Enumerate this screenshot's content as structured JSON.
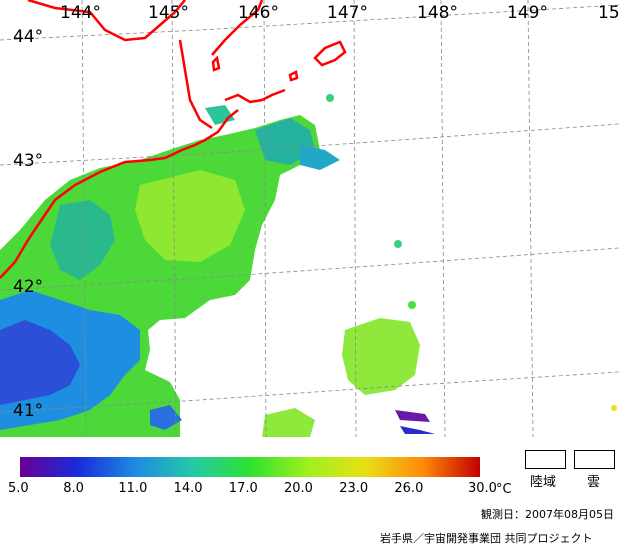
{
  "map": {
    "lon_labels": [
      "144°",
      "145°",
      "146°",
      "147°",
      "148°",
      "149°",
      "15"
    ],
    "lat_labels": [
      "44°",
      "43°",
      "42°",
      "41°"
    ],
    "coast_color": "#ff0000",
    "grid_color": "#888888"
  },
  "legend": {
    "ticks": [
      "5.0",
      "8.0",
      "11.0",
      "14.0",
      "17.0",
      "20.0",
      "23.0",
      "26.0",
      "30.0"
    ],
    "unit": "°C",
    "range": [
      5.0,
      30.0
    ],
    "colors": [
      "#6a0094",
      "#1a2adb",
      "#1d8be0",
      "#23c9a8",
      "#2fe12f",
      "#9ef01e",
      "#e8e016",
      "#ff8a0a",
      "#c20000"
    ],
    "land_label": "陸域",
    "cloud_label": "雲"
  },
  "observation": "観測日：2007年08月05日",
  "credit": "岩手県／宇宙開発事業団 共同プロジェクト"
}
